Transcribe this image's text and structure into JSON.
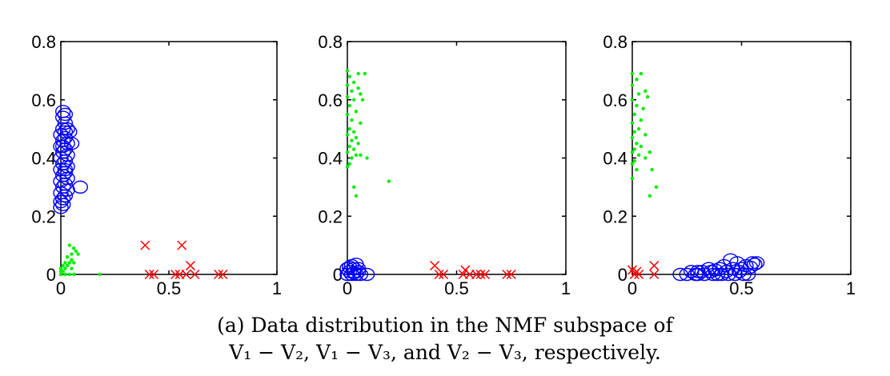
{
  "chart_data": [
    {
      "type": "scatter",
      "xlim": [
        0,
        1
      ],
      "ylim": [
        0,
        0.8
      ],
      "xticks": [
        0,
        0.5,
        1
      ],
      "yticks": [
        0,
        0.2,
        0.4,
        0.6,
        0.8
      ],
      "xtick_labels": [
        "0",
        "0.5",
        "1"
      ],
      "ytick_labels": [
        "0",
        "0.2",
        "0.4",
        "0.6",
        "0.8"
      ],
      "grid": false,
      "series": [
        {
          "marker": "circle",
          "color": "#0000ff",
          "points": [
            [
              0.01,
              0.56
            ],
            [
              0.02,
              0.55
            ],
            [
              0.01,
              0.54
            ],
            [
              0.02,
              0.52
            ],
            [
              0.01,
              0.5
            ],
            [
              0.02,
              0.49
            ],
            [
              0.03,
              0.5
            ],
            [
              0.0,
              0.48
            ],
            [
              0.02,
              0.47
            ],
            [
              0.04,
              0.49
            ],
            [
              0.01,
              0.46
            ],
            [
              0.03,
              0.45
            ],
            [
              0.05,
              0.45
            ],
            [
              0.0,
              0.44
            ],
            [
              0.02,
              0.43
            ],
            [
              0.01,
              0.42
            ],
            [
              0.03,
              0.41
            ],
            [
              0.0,
              0.4
            ],
            [
              0.02,
              0.39
            ],
            [
              0.01,
              0.38
            ],
            [
              0.03,
              0.37
            ],
            [
              0.0,
              0.36
            ],
            [
              0.02,
              0.35
            ],
            [
              0.01,
              0.34
            ],
            [
              0.03,
              0.33
            ],
            [
              0.0,
              0.32
            ],
            [
              0.02,
              0.31
            ],
            [
              0.01,
              0.3
            ],
            [
              0.03,
              0.29
            ],
            [
              0.0,
              0.28
            ],
            [
              0.02,
              0.27
            ],
            [
              0.01,
              0.26
            ],
            [
              0.0,
              0.25
            ],
            [
              0.01,
              0.24
            ],
            [
              0.0,
              0.23
            ],
            [
              0.09,
              0.3
            ],
            [
              0.02,
              0.36
            ],
            [
              0.01,
              0.44
            ]
          ]
        },
        {
          "marker": "dot",
          "color": "#00ee00",
          "points": [
            [
              0.04,
              0.1
            ],
            [
              0.06,
              0.09
            ],
            [
              0.07,
              0.08
            ],
            [
              0.05,
              0.07
            ],
            [
              0.08,
              0.07
            ],
            [
              0.03,
              0.06
            ],
            [
              0.05,
              0.05
            ],
            [
              0.02,
              0.04
            ],
            [
              0.04,
              0.04
            ],
            [
              0.06,
              0.04
            ],
            [
              0.01,
              0.03
            ],
            [
              0.03,
              0.03
            ],
            [
              0.05,
              0.02
            ],
            [
              0.0,
              0.02
            ],
            [
              0.02,
              0.02
            ],
            [
              0.0,
              0.01
            ],
            [
              0.01,
              0.01
            ],
            [
              0.0,
              0.0
            ],
            [
              0.02,
              0.0
            ],
            [
              0.04,
              0.0
            ],
            [
              0.06,
              0.0
            ],
            [
              0.18,
              0.0
            ]
          ]
        },
        {
          "marker": "x",
          "color": "#ff0000",
          "points": [
            [
              0.39,
              0.1
            ],
            [
              0.56,
              0.1
            ],
            [
              0.6,
              0.03
            ],
            [
              0.41,
              0.0
            ],
            [
              0.43,
              0.0
            ],
            [
              0.53,
              0.0
            ],
            [
              0.55,
              0.0
            ],
            [
              0.58,
              0.0
            ],
            [
              0.62,
              0.0
            ],
            [
              0.73,
              0.0
            ],
            [
              0.75,
              0.0
            ]
          ]
        }
      ]
    },
    {
      "type": "scatter",
      "xlim": [
        0,
        1
      ],
      "ylim": [
        0,
        0.8
      ],
      "xticks": [
        0,
        0.5,
        1
      ],
      "yticks": [
        0,
        0.2,
        0.4,
        0.6,
        0.8
      ],
      "xtick_labels": [
        "0",
        "0.5",
        "1"
      ],
      "ytick_labels": [
        "0",
        "0.2",
        "0.4",
        "0.6",
        "0.8"
      ],
      "grid": false,
      "series": [
        {
          "marker": "dot",
          "color": "#00ee00",
          "points": [
            [
              0.0,
              0.7
            ],
            [
              0.01,
              0.68
            ],
            [
              0.05,
              0.69
            ],
            [
              0.08,
              0.69
            ],
            [
              0.03,
              0.66
            ],
            [
              0.0,
              0.65
            ],
            [
              0.05,
              0.64
            ],
            [
              0.02,
              0.63
            ],
            [
              0.06,
              0.62
            ],
            [
              0.0,
              0.61
            ],
            [
              0.03,
              0.6
            ],
            [
              0.07,
              0.6
            ],
            [
              0.01,
              0.58
            ],
            [
              0.04,
              0.56
            ],
            [
              0.0,
              0.55
            ],
            [
              0.02,
              0.53
            ],
            [
              0.06,
              0.52
            ],
            [
              0.01,
              0.5
            ],
            [
              0.03,
              0.49
            ],
            [
              0.0,
              0.48
            ],
            [
              0.04,
              0.47
            ],
            [
              0.02,
              0.46
            ],
            [
              0.05,
              0.45
            ],
            [
              0.01,
              0.44
            ],
            [
              0.03,
              0.43
            ],
            [
              0.0,
              0.42
            ],
            [
              0.04,
              0.41
            ],
            [
              0.02,
              0.4
            ],
            [
              0.06,
              0.41
            ],
            [
              0.09,
              0.4
            ],
            [
              0.01,
              0.38
            ],
            [
              0.0,
              0.37
            ],
            [
              0.03,
              0.3
            ],
            [
              0.04,
              0.27
            ],
            [
              0.19,
              0.32
            ]
          ]
        },
        {
          "marker": "circle",
          "color": "#0000ff",
          "points": [
            [
              0.02,
              0.03
            ],
            [
              0.04,
              0.035
            ],
            [
              0.0,
              0.02
            ],
            [
              0.03,
              0.02
            ],
            [
              0.05,
              0.02
            ],
            [
              0.01,
              0.01
            ],
            [
              0.03,
              0.005
            ],
            [
              0.0,
              0.0
            ],
            [
              0.02,
              0.0
            ],
            [
              0.04,
              0.0
            ],
            [
              0.06,
              0.0
            ],
            [
              0.09,
              0.0
            ],
            [
              0.01,
              0.025
            ],
            [
              0.05,
              0.01
            ]
          ]
        },
        {
          "marker": "x",
          "color": "#ff0000",
          "points": [
            [
              0.4,
              0.03
            ],
            [
              0.54,
              0.015
            ],
            [
              0.42,
              0.0
            ],
            [
              0.44,
              0.0
            ],
            [
              0.53,
              0.0
            ],
            [
              0.56,
              0.0
            ],
            [
              0.59,
              0.0
            ],
            [
              0.61,
              0.0
            ],
            [
              0.63,
              0.0
            ],
            [
              0.73,
              0.0
            ],
            [
              0.75,
              0.0
            ]
          ]
        }
      ]
    },
    {
      "type": "scatter",
      "xlim": [
        0,
        1
      ],
      "ylim": [
        0,
        0.8
      ],
      "xticks": [
        0,
        0.5,
        1
      ],
      "yticks": [
        0,
        0.2,
        0.4,
        0.6,
        0.8
      ],
      "xtick_labels": [
        "0",
        "0.5",
        "1"
      ],
      "ytick_labels": [
        "0",
        "0.2",
        "0.4",
        "0.6",
        "0.8"
      ],
      "grid": false,
      "series": [
        {
          "marker": "dot",
          "color": "#00ee00",
          "points": [
            [
              0.0,
              0.69
            ],
            [
              0.04,
              0.69
            ],
            [
              0.02,
              0.67
            ],
            [
              0.0,
              0.65
            ],
            [
              0.06,
              0.63
            ],
            [
              0.03,
              0.62
            ],
            [
              0.07,
              0.61
            ],
            [
              0.0,
              0.6
            ],
            [
              0.02,
              0.58
            ],
            [
              0.05,
              0.57
            ],
            [
              0.01,
              0.55
            ],
            [
              0.04,
              0.53
            ],
            [
              0.0,
              0.52
            ],
            [
              0.03,
              0.5
            ],
            [
              0.01,
              0.49
            ],
            [
              0.06,
              0.48
            ],
            [
              0.0,
              0.47
            ],
            [
              0.02,
              0.45
            ],
            [
              0.04,
              0.44
            ],
            [
              0.01,
              0.43
            ],
            [
              0.0,
              0.42
            ],
            [
              0.08,
              0.42
            ],
            [
              0.03,
              0.41
            ],
            [
              0.06,
              0.4
            ],
            [
              0.01,
              0.39
            ],
            [
              0.0,
              0.38
            ],
            [
              0.02,
              0.36
            ],
            [
              0.09,
              0.36
            ],
            [
              0.0,
              0.33
            ],
            [
              0.11,
              0.3
            ],
            [
              0.08,
              0.27
            ]
          ]
        },
        {
          "marker": "x",
          "color": "#ff0000",
          "points": [
            [
              0.0,
              0.015
            ],
            [
              0.02,
              0.01
            ],
            [
              0.1,
              0.03
            ],
            [
              0.01,
              0.0
            ],
            [
              0.03,
              0.0
            ],
            [
              0.1,
              0.0
            ]
          ]
        },
        {
          "marker": "circle",
          "color": "#0000ff",
          "points": [
            [
              0.22,
              0.0
            ],
            [
              0.25,
              0.0
            ],
            [
              0.27,
              0.01
            ],
            [
              0.29,
              0.0
            ],
            [
              0.3,
              0.0
            ],
            [
              0.32,
              0.01
            ],
            [
              0.33,
              0.0
            ],
            [
              0.35,
              0.02
            ],
            [
              0.37,
              0.0
            ],
            [
              0.38,
              0.015
            ],
            [
              0.39,
              0.0
            ],
            [
              0.4,
              0.02
            ],
            [
              0.41,
              0.0
            ],
            [
              0.42,
              0.03
            ],
            [
              0.43,
              0.01
            ],
            [
              0.44,
              0.0
            ],
            [
              0.45,
              0.05
            ],
            [
              0.46,
              0.02
            ],
            [
              0.47,
              0.0
            ],
            [
              0.48,
              0.04
            ],
            [
              0.49,
              0.01
            ],
            [
              0.5,
              0.02
            ],
            [
              0.51,
              0.0
            ],
            [
              0.52,
              0.03
            ],
            [
              0.53,
              0.0
            ],
            [
              0.54,
              0.025
            ],
            [
              0.55,
              0.04
            ],
            [
              0.56,
              0.035
            ],
            [
              0.57,
              0.04
            ],
            [
              0.36,
              0.01
            ],
            [
              0.3,
              0.01
            ]
          ]
        }
      ]
    }
  ],
  "caption": {
    "line1": "(a) Data distribution in the NMF subspace of",
    "line2": "V₁ − V₂, V₁ − V₃, and V₂ − V₃, respectively."
  }
}
